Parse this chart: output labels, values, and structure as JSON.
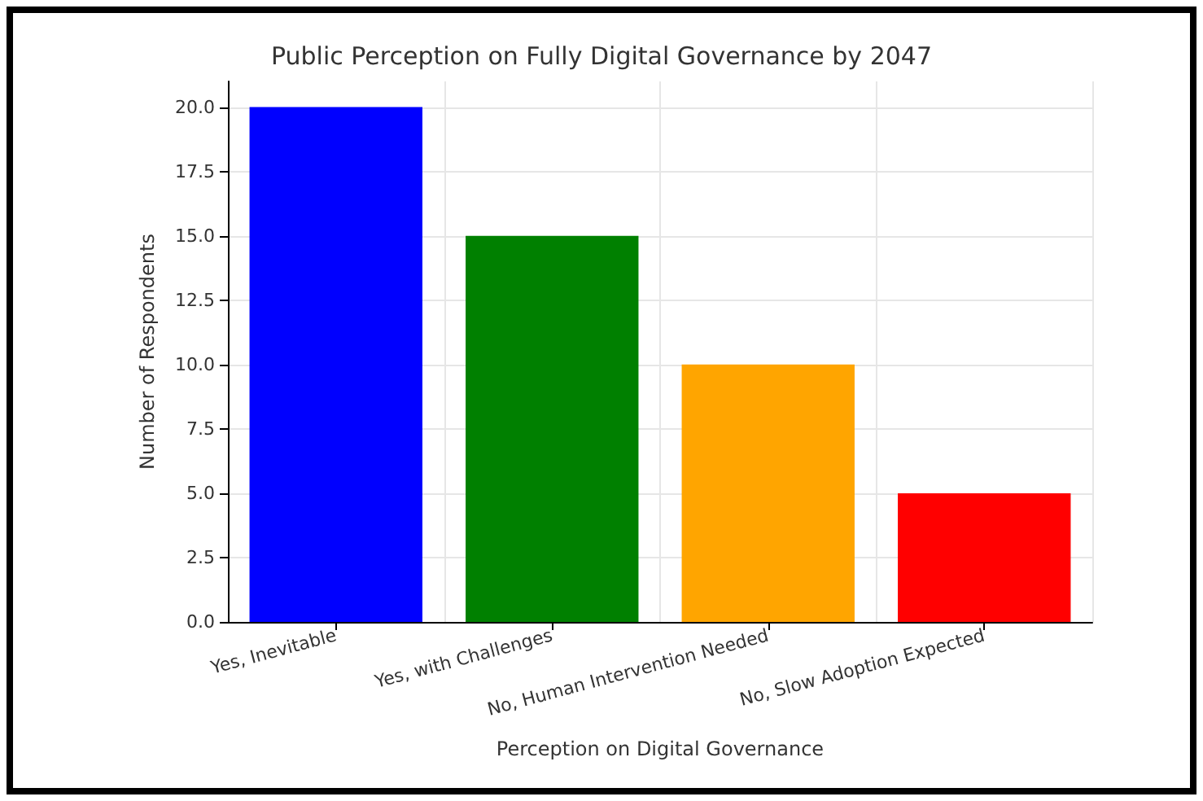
{
  "chart_data": {
    "type": "bar",
    "title": "Public Perception on Fully Digital Governance by 2047",
    "xlabel": "Perception on Digital Governance",
    "ylabel": "Number of Respondents",
    "categories": [
      "Yes, Inevitable",
      "Yes, with Challenges",
      "No, Human Intervention Needed",
      "No, Slow Adoption Expected"
    ],
    "values": [
      20,
      15,
      10,
      5
    ],
    "colors": [
      "#0000ff",
      "#008000",
      "#ffa500",
      "#ff0000"
    ],
    "ylim": [
      0,
      21
    ],
    "yticks": [
      {
        "value": 0,
        "label": "0.0"
      },
      2.5,
      {
        "value": 5,
        "label": "5.0"
      },
      7.5,
      {
        "value": 10,
        "label": "10.0"
      },
      12.5,
      {
        "value": 15,
        "label": "15.0"
      },
      17.5,
      {
        "value": 20,
        "label": "20.0"
      }
    ],
    "grid": true
  }
}
